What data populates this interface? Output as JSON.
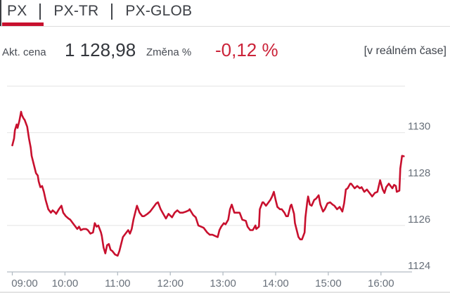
{
  "tabs": {
    "items": [
      {
        "label": "PX",
        "active": true
      },
      {
        "label": "PX-TR",
        "active": false
      },
      {
        "label": "PX-GLOB",
        "active": false
      }
    ]
  },
  "info": {
    "price_label": "Akt. cena",
    "price_value": "1 128,98",
    "change_label": "Změna %",
    "change_value": "-0,12 %",
    "realtime_note": "[v reálném čase]"
  },
  "colors": {
    "accent_red": "#c8102e",
    "change_red": "#cb2339",
    "grid": "#e3e3e3",
    "axis": "#b3bcc4",
    "axis_text": "#68707a",
    "text_dark": "#33363c",
    "text_label": "#484c54"
  },
  "chart_data": {
    "type": "line",
    "title": "",
    "xlabel": "",
    "ylabel": "",
    "x_unit": "minutes_since_09:00",
    "x_ticks": [
      "09:00",
      "10:00",
      "11:00",
      "12:00",
      "13:00",
      "14:00",
      "15:00",
      "16:00"
    ],
    "x_tick_minutes": [
      0,
      60,
      120,
      180,
      240,
      300,
      360,
      420
    ],
    "xlim_minutes": [
      0,
      455
    ],
    "y_ticks": [
      1130,
      1128,
      1126,
      1124
    ],
    "y_grid_values": [
      1126,
      1128,
      1130,
      1132
    ],
    "ylim": [
      1124,
      1132
    ],
    "grid": "horizontal",
    "legend_position": "none",
    "series": [
      {
        "name": "PX",
        "color": "#c8102e",
        "points": [
          [
            0,
            1129.45
          ],
          [
            2,
            1129.75
          ],
          [
            3,
            1130.1
          ],
          [
            5,
            1130.35
          ],
          [
            6,
            1130.2
          ],
          [
            8,
            1130.5
          ],
          [
            10,
            1130.9
          ],
          [
            11,
            1130.75
          ],
          [
            13,
            1130.6
          ],
          [
            14,
            1130.55
          ],
          [
            17,
            1130.25
          ],
          [
            19,
            1129.75
          ],
          [
            21,
            1129.35
          ],
          [
            22,
            1129.0
          ],
          [
            25,
            1128.55
          ],
          [
            27,
            1128.25
          ],
          [
            29,
            1128.15
          ],
          [
            30,
            1127.9
          ],
          [
            32,
            1127.65
          ],
          [
            34,
            1127.7
          ],
          [
            36,
            1127.45
          ],
          [
            38,
            1127.1
          ],
          [
            41,
            1126.7
          ],
          [
            44,
            1126.55
          ],
          [
            46,
            1126.65
          ],
          [
            49,
            1126.55
          ],
          [
            50,
            1126.5
          ],
          [
            53,
            1126.7
          ],
          [
            56,
            1126.85
          ],
          [
            58,
            1126.55
          ],
          [
            61,
            1126.4
          ],
          [
            64,
            1126.3
          ],
          [
            66,
            1126.25
          ],
          [
            69,
            1126.1
          ],
          [
            72,
            1125.95
          ],
          [
            74,
            1125.85
          ],
          [
            76,
            1125.95
          ],
          [
            78,
            1125.8
          ],
          [
            81,
            1125.85
          ],
          [
            84,
            1125.85
          ],
          [
            86,
            1125.8
          ],
          [
            89,
            1125.65
          ],
          [
            92,
            1125.7
          ],
          [
            94,
            1126.1
          ],
          [
            96,
            1125.95
          ],
          [
            98,
            1126.0
          ],
          [
            101,
            1125.7
          ],
          [
            102,
            1125.55
          ],
          [
            104,
            1125.05
          ],
          [
            106,
            1124.8
          ],
          [
            108,
            1125.15
          ],
          [
            110,
            1125.2
          ],
          [
            112,
            1124.95
          ],
          [
            114,
            1124.9
          ],
          [
            117,
            1124.75
          ],
          [
            120,
            1124.7
          ],
          [
            122,
            1124.9
          ],
          [
            124,
            1125.2
          ],
          [
            126,
            1125.5
          ],
          [
            129,
            1125.65
          ],
          [
            132,
            1125.8
          ],
          [
            134,
            1125.65
          ],
          [
            136,
            1125.85
          ],
          [
            138,
            1126.25
          ],
          [
            141,
            1126.7
          ],
          [
            142,
            1126.85
          ],
          [
            145,
            1126.55
          ],
          [
            148,
            1126.4
          ],
          [
            150,
            1126.4
          ],
          [
            154,
            1126.5
          ],
          [
            157,
            1126.6
          ],
          [
            161,
            1126.8
          ],
          [
            164,
            1126.95
          ],
          [
            166,
            1127.0
          ],
          [
            169,
            1126.7
          ],
          [
            172,
            1126.5
          ],
          [
            175,
            1126.3
          ],
          [
            178,
            1126.5
          ],
          [
            182,
            1126.35
          ],
          [
            185,
            1126.55
          ],
          [
            188,
            1126.65
          ],
          [
            191,
            1126.55
          ],
          [
            194,
            1126.55
          ],
          [
            198,
            1126.6
          ],
          [
            201,
            1126.65
          ],
          [
            202,
            1126.7
          ],
          [
            206,
            1126.45
          ],
          [
            209,
            1126.35
          ],
          [
            212,
            1126.0
          ],
          [
            215,
            1125.95
          ],
          [
            218,
            1125.9
          ],
          [
            222,
            1125.7
          ],
          [
            225,
            1125.6
          ],
          [
            228,
            1125.6
          ],
          [
            231,
            1125.55
          ],
          [
            234,
            1125.5
          ],
          [
            236,
            1125.8
          ],
          [
            238,
            1125.95
          ],
          [
            241,
            1126.1
          ],
          [
            243,
            1126.05
          ],
          [
            246,
            1126.25
          ],
          [
            248,
            1126.7
          ],
          [
            250,
            1126.9
          ],
          [
            253,
            1126.55
          ],
          [
            256,
            1126.55
          ],
          [
            259,
            1126.55
          ],
          [
            262,
            1126.25
          ],
          [
            266,
            1126.2
          ],
          [
            268,
            1125.95
          ],
          [
            271,
            1125.8
          ],
          [
            274,
            1125.8
          ],
          [
            277,
            1126.0
          ],
          [
            278,
            1125.85
          ],
          [
            281,
            1125.95
          ],
          [
            282,
            1126.7
          ],
          [
            285,
            1127.0
          ],
          [
            286,
            1127.0
          ],
          [
            289,
            1126.85
          ],
          [
            291,
            1126.95
          ],
          [
            294,
            1127.1
          ],
          [
            296,
            1127.25
          ],
          [
            298,
            1127.45
          ],
          [
            300,
            1127.1
          ],
          [
            302,
            1126.8
          ],
          [
            305,
            1126.7
          ],
          [
            307,
            1126.7
          ],
          [
            310,
            1126.55
          ],
          [
            312,
            1126.4
          ],
          [
            314,
            1126.4
          ],
          [
            317,
            1126.85
          ],
          [
            318,
            1126.9
          ],
          [
            321,
            1126.5
          ],
          [
            322,
            1126.1
          ],
          [
            324,
            1125.8
          ],
          [
            326,
            1125.5
          ],
          [
            328,
            1125.4
          ],
          [
            330,
            1125.4
          ],
          [
            333,
            1125.7
          ],
          [
            334,
            1126.35
          ],
          [
            336,
            1127.0
          ],
          [
            337,
            1127.25
          ],
          [
            339,
            1126.9
          ],
          [
            341,
            1126.85
          ],
          [
            344,
            1127.1
          ],
          [
            346,
            1127.15
          ],
          [
            349,
            1127.3
          ],
          [
            351,
            1126.9
          ],
          [
            354,
            1126.6
          ],
          [
            356,
            1126.7
          ],
          [
            359,
            1126.95
          ],
          [
            362,
            1127.0
          ],
          [
            365,
            1126.9
          ],
          [
            367,
            1126.85
          ],
          [
            370,
            1126.7
          ],
          [
            373,
            1126.8
          ],
          [
            376,
            1126.6
          ],
          [
            378,
            1126.95
          ],
          [
            380,
            1127.55
          ],
          [
            382,
            1127.6
          ],
          [
            385,
            1127.8
          ],
          [
            386,
            1127.8
          ],
          [
            390,
            1127.6
          ],
          [
            393,
            1127.7
          ],
          [
            396,
            1127.6
          ],
          [
            398,
            1127.65
          ],
          [
            401,
            1127.45
          ],
          [
            404,
            1127.55
          ],
          [
            406,
            1127.45
          ],
          [
            409,
            1127.3
          ],
          [
            410,
            1127.25
          ],
          [
            413,
            1127.4
          ],
          [
            416,
            1127.45
          ],
          [
            419,
            1127.95
          ],
          [
            422,
            1127.55
          ],
          [
            424,
            1127.4
          ],
          [
            426,
            1127.65
          ],
          [
            429,
            1127.8
          ],
          [
            431,
            1127.7
          ],
          [
            433,
            1127.6
          ],
          [
            435,
            1127.75
          ],
          [
            437,
            1127.7
          ],
          [
            438,
            1127.45
          ],
          [
            441,
            1127.5
          ],
          [
            442,
            1128.45
          ],
          [
            444,
            1129.0
          ],
          [
            446,
            1128.98
          ]
        ]
      }
    ]
  }
}
